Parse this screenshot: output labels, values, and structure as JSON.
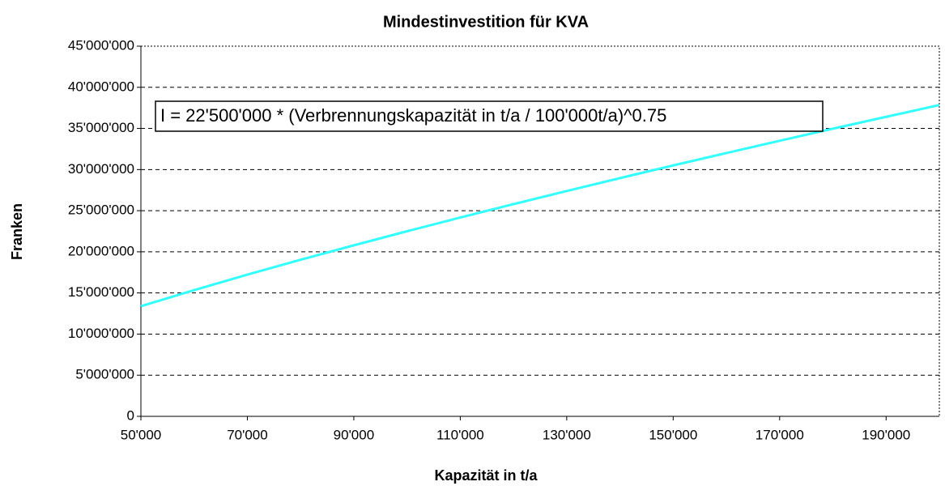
{
  "chart_data": {
    "type": "line",
    "title": "Mindestinvestition für KVA",
    "x_label": "Kapazität in t/a",
    "y_label": "Franken",
    "annotation": "I = 22'500'000 * (Verbrennungskapazität in t/a / 100'000t/a)^0.75",
    "x": [
      50000,
      60000,
      70000,
      80000,
      90000,
      100000,
      110000,
      120000,
      130000,
      140000,
      150000,
      160000,
      170000,
      180000,
      190000,
      200000
    ],
    "series": [
      {
        "name": "I",
        "color": "#33ffff",
        "values": [
          13380000,
          15340000,
          17220000,
          19030000,
          20790000,
          22500000,
          24170000,
          25800000,
          27390000,
          28960000,
          30500000,
          32010000,
          33500000,
          34970000,
          36410000,
          37840000
        ]
      }
    ],
    "xlim": [
      50000,
      200000
    ],
    "xticks": [
      {
        "value": 50000,
        "label": "50'000"
      },
      {
        "value": 70000,
        "label": "70'000"
      },
      {
        "value": 90000,
        "label": "90'000"
      },
      {
        "value": 110000,
        "label": "110'000"
      },
      {
        "value": 130000,
        "label": "130'000"
      },
      {
        "value": 150000,
        "label": "150'000"
      },
      {
        "value": 170000,
        "label": "170'000"
      },
      {
        "value": 190000,
        "label": "190'000"
      }
    ],
    "ylim": [
      0,
      45000000
    ],
    "yticks": [
      0,
      {
        "value": 5000000,
        "label": "5'000'000"
      },
      {
        "value": 10000000,
        "label": "10'000'000"
      },
      {
        "value": 15000000,
        "label": "15'000'000"
      },
      {
        "value": 20000000,
        "label": "20'000'000"
      },
      {
        "value": 25000000,
        "label": "25'000'000"
      },
      {
        "value": 30000000,
        "label": "30'000'000"
      },
      {
        "value": 35000000,
        "label": "35'000'000"
      },
      {
        "value": 40000000,
        "label": "40'000'000"
      },
      {
        "value": 45000000,
        "label": "45'000'000"
      }
    ],
    "grid": true
  }
}
